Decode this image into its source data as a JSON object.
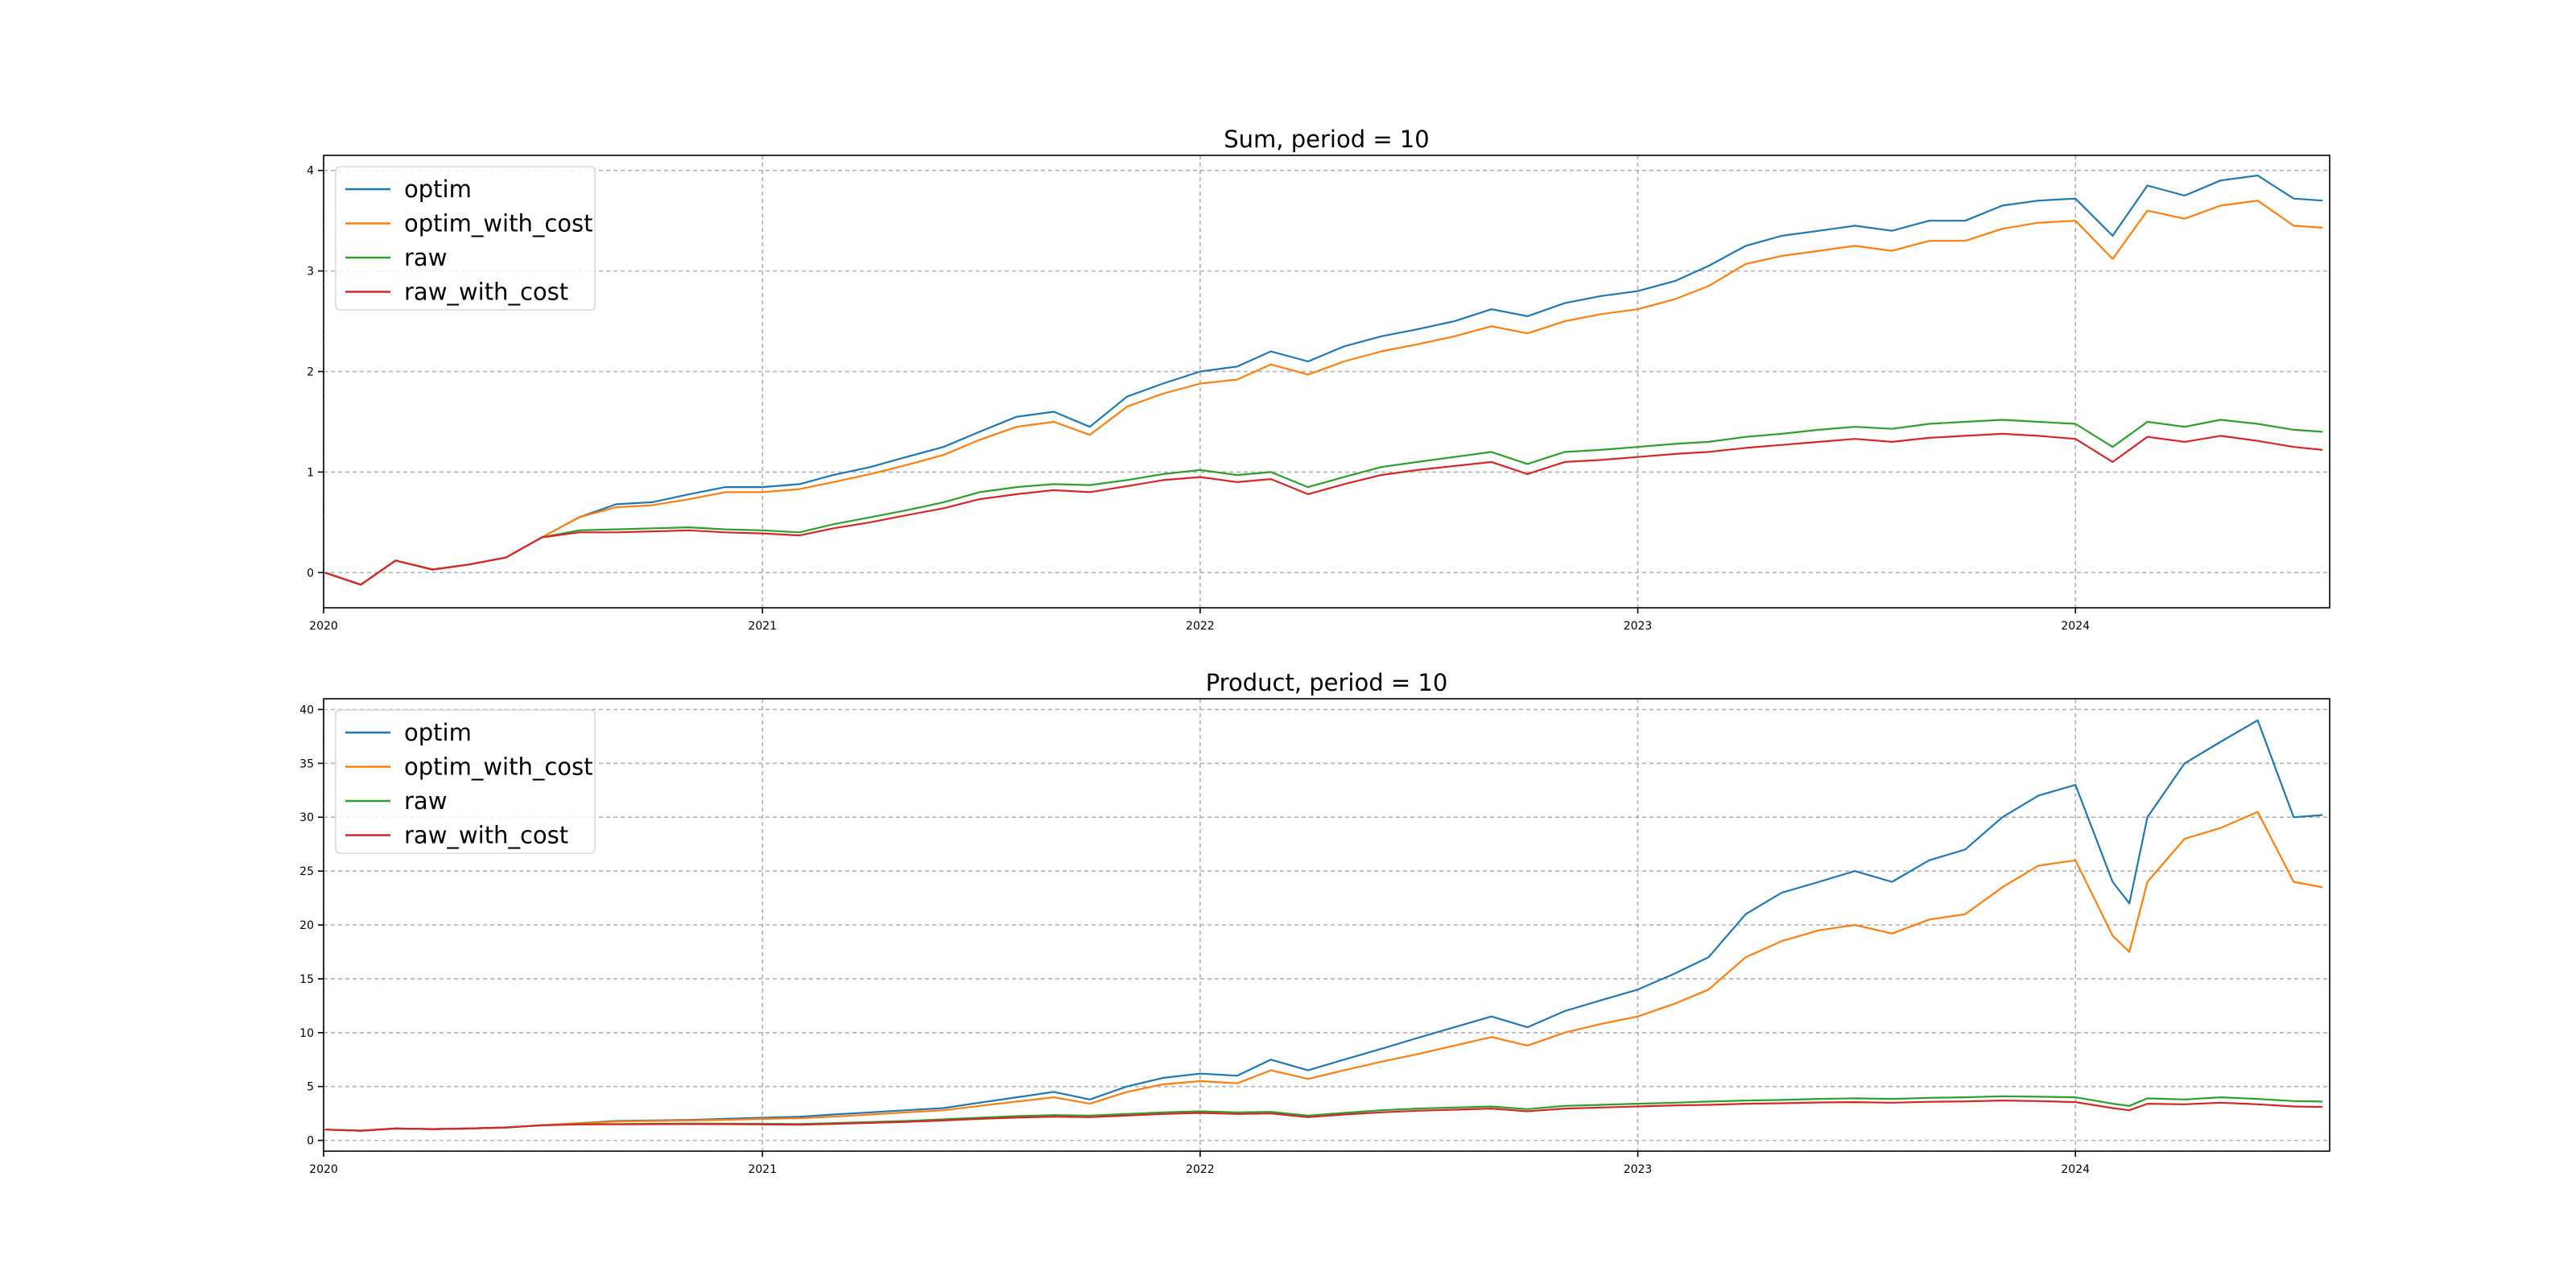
{
  "chart_data": [
    {
      "type": "line",
      "title": "Sum, period = 10",
      "xlabel": "",
      "ylabel": "",
      "x_range": [
        "2020-01-01",
        "2024-07-31"
      ],
      "x_ticks": [
        "2020",
        "2021",
        "2022",
        "2023",
        "2024"
      ],
      "ylim": [
        -0.35,
        4.15
      ],
      "y_ticks": [
        0,
        1,
        2,
        3,
        4
      ],
      "grid": true,
      "legend_position": "upper-left",
      "x": [
        "2020-01-02",
        "2020-02-01",
        "2020-03-01",
        "2020-04-01",
        "2020-05-01",
        "2020-06-01",
        "2020-07-01",
        "2020-08-01",
        "2020-09-01",
        "2020-10-01",
        "2020-11-01",
        "2020-12-01",
        "2021-01-01",
        "2021-02-01",
        "2021-03-01",
        "2021-04-01",
        "2021-05-01",
        "2021-06-01",
        "2021-07-01",
        "2021-08-01",
        "2021-09-01",
        "2021-10-01",
        "2021-11-01",
        "2021-12-01",
        "2022-01-01",
        "2022-02-01",
        "2022-03-01",
        "2022-04-01",
        "2022-05-01",
        "2022-06-01",
        "2022-07-01",
        "2022-08-01",
        "2022-09-01",
        "2022-10-01",
        "2022-11-01",
        "2022-12-01",
        "2023-01-01",
        "2023-02-01",
        "2023-03-01",
        "2023-04-01",
        "2023-05-01",
        "2023-06-01",
        "2023-07-01",
        "2023-08-01",
        "2023-09-01",
        "2023-10-01",
        "2023-11-01",
        "2023-12-01",
        "2024-01-01",
        "2024-02-01",
        "2024-03-01",
        "2024-04-01",
        "2024-05-01",
        "2024-06-01",
        "2024-07-01",
        "2024-07-25"
      ],
      "series": [
        {
          "name": "optim",
          "color": "#1f77b4",
          "values": [
            0.0,
            -0.12,
            0.12,
            0.03,
            0.08,
            0.15,
            0.35,
            0.55,
            0.68,
            0.7,
            0.78,
            0.85,
            0.85,
            0.88,
            0.97,
            1.05,
            1.15,
            1.25,
            1.4,
            1.55,
            1.6,
            1.45,
            1.75,
            1.88,
            2.0,
            2.05,
            2.2,
            2.1,
            2.25,
            2.35,
            2.42,
            2.5,
            2.62,
            2.55,
            2.68,
            2.75,
            2.8,
            2.9,
            3.05,
            3.25,
            3.35,
            3.4,
            3.45,
            3.4,
            3.5,
            3.5,
            3.65,
            3.7,
            3.72,
            3.35,
            3.85,
            3.75,
            3.9,
            3.95,
            3.72,
            3.7
          ]
        },
        {
          "name": "optim_with_cost",
          "color": "#ff7f0e",
          "values": [
            0.0,
            -0.12,
            0.12,
            0.03,
            0.08,
            0.15,
            0.35,
            0.55,
            0.65,
            0.67,
            0.73,
            0.8,
            0.8,
            0.83,
            0.9,
            0.98,
            1.07,
            1.17,
            1.32,
            1.45,
            1.5,
            1.37,
            1.65,
            1.78,
            1.88,
            1.92,
            2.07,
            1.97,
            2.1,
            2.2,
            2.27,
            2.35,
            2.45,
            2.38,
            2.5,
            2.57,
            2.62,
            2.72,
            2.85,
            3.07,
            3.15,
            3.2,
            3.25,
            3.2,
            3.3,
            3.3,
            3.42,
            3.48,
            3.5,
            3.12,
            3.6,
            3.52,
            3.65,
            3.7,
            3.45,
            3.43
          ]
        },
        {
          "name": "raw",
          "color": "#2ca02c",
          "values": [
            0.0,
            -0.12,
            0.12,
            0.03,
            0.08,
            0.15,
            0.35,
            0.42,
            0.43,
            0.44,
            0.45,
            0.43,
            0.42,
            0.4,
            0.48,
            0.55,
            0.62,
            0.7,
            0.8,
            0.85,
            0.88,
            0.87,
            0.92,
            0.98,
            1.02,
            0.97,
            1.0,
            0.85,
            0.95,
            1.05,
            1.1,
            1.15,
            1.2,
            1.08,
            1.2,
            1.22,
            1.25,
            1.28,
            1.3,
            1.35,
            1.38,
            1.42,
            1.45,
            1.43,
            1.48,
            1.5,
            1.52,
            1.5,
            1.48,
            1.25,
            1.5,
            1.45,
            1.52,
            1.48,
            1.42,
            1.4
          ]
        },
        {
          "name": "raw_with_cost",
          "color": "#d62728",
          "values": [
            0.0,
            -0.12,
            0.12,
            0.03,
            0.08,
            0.15,
            0.35,
            0.4,
            0.4,
            0.41,
            0.42,
            0.4,
            0.39,
            0.37,
            0.44,
            0.5,
            0.57,
            0.64,
            0.73,
            0.78,
            0.82,
            0.8,
            0.86,
            0.92,
            0.95,
            0.9,
            0.93,
            0.78,
            0.88,
            0.97,
            1.02,
            1.06,
            1.1,
            0.98,
            1.1,
            1.12,
            1.15,
            1.18,
            1.2,
            1.24,
            1.27,
            1.3,
            1.33,
            1.3,
            1.34,
            1.36,
            1.38,
            1.36,
            1.33,
            1.1,
            1.35,
            1.3,
            1.36,
            1.31,
            1.25,
            1.22
          ]
        }
      ]
    },
    {
      "type": "line",
      "title": "Product, period = 10",
      "xlabel": "",
      "ylabel": "",
      "x_range": [
        "2020-01-01",
        "2024-07-31"
      ],
      "x_ticks": [
        "2020",
        "2021",
        "2022",
        "2023",
        "2024"
      ],
      "ylim": [
        -1,
        41
      ],
      "y_ticks": [
        0,
        5,
        10,
        15,
        20,
        25,
        30,
        35,
        40
      ],
      "grid": true,
      "legend_position": "upper-left",
      "x": [
        "2020-01-02",
        "2020-02-01",
        "2020-03-01",
        "2020-04-01",
        "2020-05-01",
        "2020-06-01",
        "2020-07-01",
        "2020-08-01",
        "2020-09-01",
        "2020-10-01",
        "2020-11-01",
        "2020-12-01",
        "2021-01-01",
        "2021-02-01",
        "2021-03-01",
        "2021-04-01",
        "2021-05-01",
        "2021-06-01",
        "2021-07-01",
        "2021-08-01",
        "2021-09-01",
        "2021-10-01",
        "2021-11-01",
        "2021-12-01",
        "2022-01-01",
        "2022-02-01",
        "2022-03-01",
        "2022-04-01",
        "2022-05-01",
        "2022-06-01",
        "2022-07-01",
        "2022-08-01",
        "2022-09-01",
        "2022-10-01",
        "2022-11-01",
        "2022-12-01",
        "2023-01-01",
        "2023-02-01",
        "2023-03-01",
        "2023-04-01",
        "2023-05-01",
        "2023-06-01",
        "2023-07-01",
        "2023-08-01",
        "2023-09-01",
        "2023-10-01",
        "2023-11-01",
        "2023-12-01",
        "2024-01-01",
        "2024-02-01",
        "2024-02-15",
        "2024-03-01",
        "2024-04-01",
        "2024-05-01",
        "2024-06-01",
        "2024-07-01",
        "2024-07-25"
      ],
      "series": [
        {
          "name": "optim",
          "color": "#1f77b4",
          "values": [
            1.0,
            0.9,
            1.1,
            1.05,
            1.1,
            1.2,
            1.4,
            1.6,
            1.8,
            1.85,
            1.9,
            2.0,
            2.1,
            2.2,
            2.4,
            2.6,
            2.8,
            3.0,
            3.5,
            4.0,
            4.5,
            3.8,
            5.0,
            5.8,
            6.2,
            6.0,
            7.5,
            6.5,
            7.5,
            8.5,
            9.5,
            10.5,
            11.5,
            10.5,
            12.0,
            13.0,
            14.0,
            15.5,
            17.0,
            21.0,
            23.0,
            24.0,
            25.0,
            24.0,
            26.0,
            27.0,
            30.0,
            32.0,
            33.0,
            24.0,
            22.0,
            30.0,
            35.0,
            37.0,
            39.0,
            30.0,
            30.2
          ]
        },
        {
          "name": "optim_with_cost",
          "color": "#ff7f0e",
          "values": [
            1.0,
            0.9,
            1.1,
            1.05,
            1.1,
            1.2,
            1.4,
            1.6,
            1.75,
            1.8,
            1.85,
            1.9,
            2.0,
            2.05,
            2.2,
            2.4,
            2.6,
            2.8,
            3.2,
            3.6,
            4.0,
            3.4,
            4.5,
            5.2,
            5.5,
            5.3,
            6.5,
            5.7,
            6.5,
            7.3,
            8.0,
            8.8,
            9.6,
            8.8,
            10.0,
            10.8,
            11.5,
            12.7,
            14.0,
            17.0,
            18.5,
            19.5,
            20.0,
            19.2,
            20.5,
            21.0,
            23.5,
            25.5,
            26.0,
            19.0,
            17.5,
            24.0,
            28.0,
            29.0,
            30.5,
            24.0,
            23.5
          ]
        },
        {
          "name": "raw",
          "color": "#2ca02c",
          "values": [
            1.0,
            0.9,
            1.1,
            1.05,
            1.1,
            1.2,
            1.4,
            1.5,
            1.52,
            1.54,
            1.56,
            1.55,
            1.54,
            1.52,
            1.6,
            1.7,
            1.8,
            1.95,
            2.1,
            2.25,
            2.35,
            2.3,
            2.45,
            2.6,
            2.7,
            2.6,
            2.65,
            2.3,
            2.55,
            2.8,
            2.95,
            3.05,
            3.15,
            2.9,
            3.2,
            3.3,
            3.4,
            3.5,
            3.6,
            3.7,
            3.75,
            3.85,
            3.9,
            3.85,
            3.95,
            4.0,
            4.1,
            4.05,
            4.0,
            3.4,
            3.2,
            3.9,
            3.8,
            4.0,
            3.85,
            3.65,
            3.6
          ]
        },
        {
          "name": "raw_with_cost",
          "color": "#d62728",
          "values": [
            1.0,
            0.9,
            1.1,
            1.05,
            1.1,
            1.2,
            1.4,
            1.48,
            1.49,
            1.5,
            1.51,
            1.5,
            1.48,
            1.45,
            1.53,
            1.62,
            1.72,
            1.85,
            2.0,
            2.12,
            2.2,
            2.15,
            2.3,
            2.45,
            2.55,
            2.45,
            2.5,
            2.15,
            2.4,
            2.6,
            2.75,
            2.85,
            2.95,
            2.7,
            2.95,
            3.05,
            3.15,
            3.25,
            3.3,
            3.4,
            3.45,
            3.52,
            3.55,
            3.5,
            3.58,
            3.62,
            3.7,
            3.65,
            3.55,
            3.0,
            2.8,
            3.4,
            3.35,
            3.5,
            3.35,
            3.15,
            3.1
          ]
        }
      ]
    }
  ]
}
